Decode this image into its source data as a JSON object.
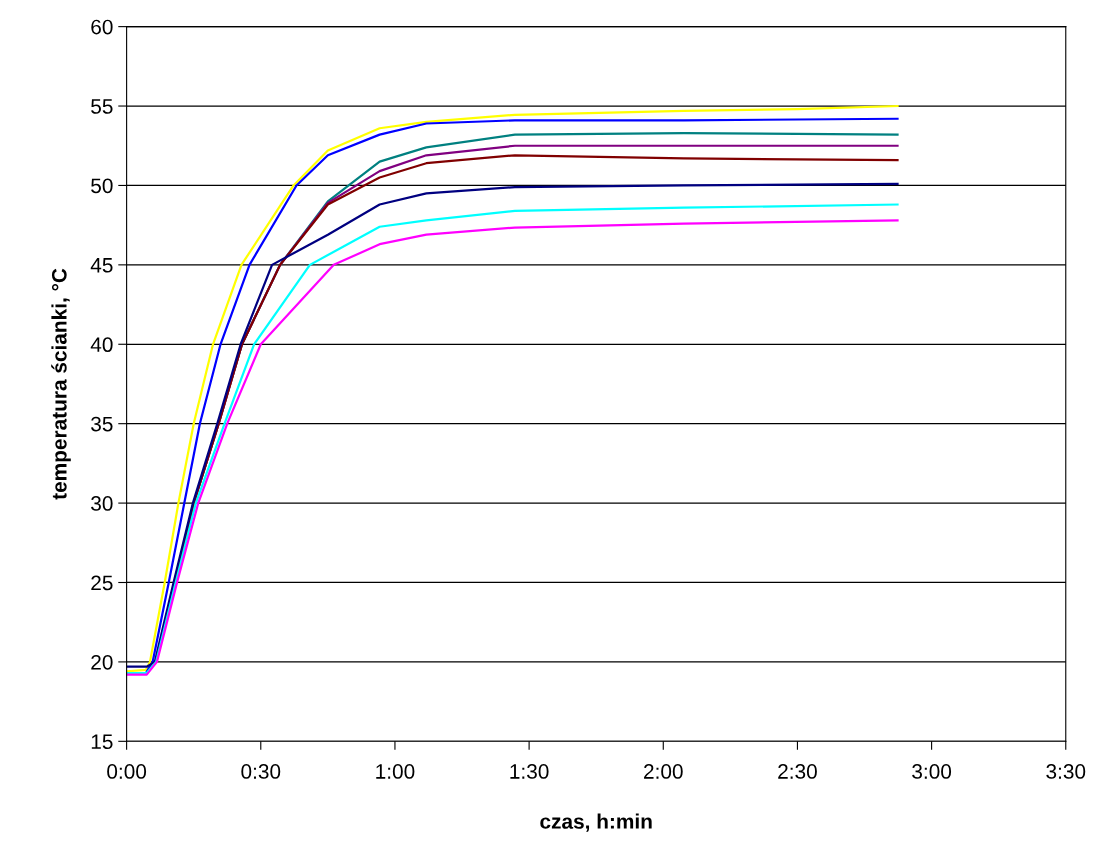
{
  "chart_data": {
    "type": "line",
    "xlabel": "czas, h:min",
    "ylabel": "temperatura ścianki, °C",
    "xlim": [
      0,
      3.5
    ],
    "xticks": [
      {
        "value": 0,
        "label": "0:00"
      },
      {
        "value": 0.5,
        "label": "0:30"
      },
      {
        "value": 1,
        "label": "1:00"
      },
      {
        "value": 1.5,
        "label": "1:30"
      },
      {
        "value": 2,
        "label": "2:00"
      },
      {
        "value": 2.5,
        "label": "2:30"
      },
      {
        "value": 3,
        "label": "3:00"
      },
      {
        "value": 3.5,
        "label": "3:30"
      }
    ],
    "ylim": [
      15,
      60
    ],
    "yticks": [
      15,
      20,
      25,
      30,
      35,
      40,
      45,
      50,
      55,
      60
    ],
    "grid": "y",
    "marker": "none",
    "line_style": "solid",
    "series": [
      {
        "color": "#ffff00",
        "x": [
          0,
          0.072,
          0.087,
          0.142,
          0.193,
          0.25,
          0.322,
          0.428,
          0.622,
          0.75,
          0.943,
          1.117,
          1.447,
          2.077,
          2.5,
          2.873
        ],
        "values": [
          19.4,
          19.5,
          20,
          25,
          30,
          35,
          40,
          45,
          50,
          52.2,
          53.6,
          54.0,
          54.45,
          54.7,
          54.8,
          55.0
        ]
      },
      {
        "color": "#0000ff",
        "x": [
          0,
          0.072,
          0.097,
          0.157,
          0.215,
          0.273,
          0.35,
          0.458,
          0.633,
          0.75,
          0.943,
          1.117,
          1.447,
          2.077,
          2.873
        ],
        "values": [
          19.3,
          19.3,
          20,
          25,
          30,
          35,
          40,
          45,
          50,
          51.9,
          53.2,
          53.9,
          54.1,
          54.1,
          54.2
        ]
      },
      {
        "color": "#008080",
        "x": [
          0.108,
          0.178,
          0.25,
          0.343,
          0.43,
          0.572,
          0.75,
          0.943,
          1.117,
          1.447,
          2.077,
          2.873
        ],
        "values": [
          20,
          25,
          30,
          35,
          40,
          45,
          49.0,
          51.5,
          52.4,
          53.2,
          53.3,
          53.2
        ]
      },
      {
        "color": "#800080",
        "x": [
          0.178,
          0.25,
          0.343,
          0.43,
          0.572,
          0.75,
          0.943,
          1.117,
          1.447,
          2.077,
          2.873
        ],
        "values": [
          25,
          30,
          35,
          40,
          45,
          48.9,
          50.9,
          51.9,
          52.5,
          52.5,
          52.5
        ]
      },
      {
        "color": "#800000",
        "x": [
          0.178,
          0.25,
          0.343,
          0.43,
          0.572,
          0.75,
          0.943,
          1.117,
          1.447,
          2.077,
          2.873
        ],
        "values": [
          25,
          30,
          35,
          40,
          45,
          48.8,
          50.5,
          51.4,
          51.9,
          51.7,
          51.6
        ]
      },
      {
        "color": "#000080",
        "x": [
          0,
          0.075,
          0.105,
          0.175,
          0.247,
          0.338,
          0.425,
          0.542,
          0.75,
          0.943,
          1.117,
          1.447,
          2.077,
          2.873
        ],
        "values": [
          19.7,
          19.7,
          20,
          25,
          30,
          35,
          40,
          45,
          46.9,
          48.8,
          49.5,
          49.9,
          50.0,
          50.1
        ]
      },
      {
        "color": "#00ffff",
        "x": [
          0,
          0.075,
          0.11,
          0.183,
          0.258,
          0.365,
          0.475,
          0.683,
          0.943,
          1.117,
          1.447,
          2.077,
          2.873
        ],
        "values": [
          19.3,
          19.3,
          20,
          25,
          30,
          35,
          40,
          45,
          47.4,
          47.8,
          48.4,
          48.6,
          48.8
        ]
      },
      {
        "color": "#ff00ff",
        "x": [
          0,
          0.075,
          0.113,
          0.188,
          0.267,
          0.375,
          0.5,
          0.772,
          0.943,
          1.117,
          1.447,
          2.077,
          2.873
        ],
        "values": [
          19.2,
          19.2,
          20,
          25,
          30,
          35,
          40,
          45,
          46.3,
          46.9,
          47.35,
          47.6,
          47.8
        ]
      }
    ]
  }
}
